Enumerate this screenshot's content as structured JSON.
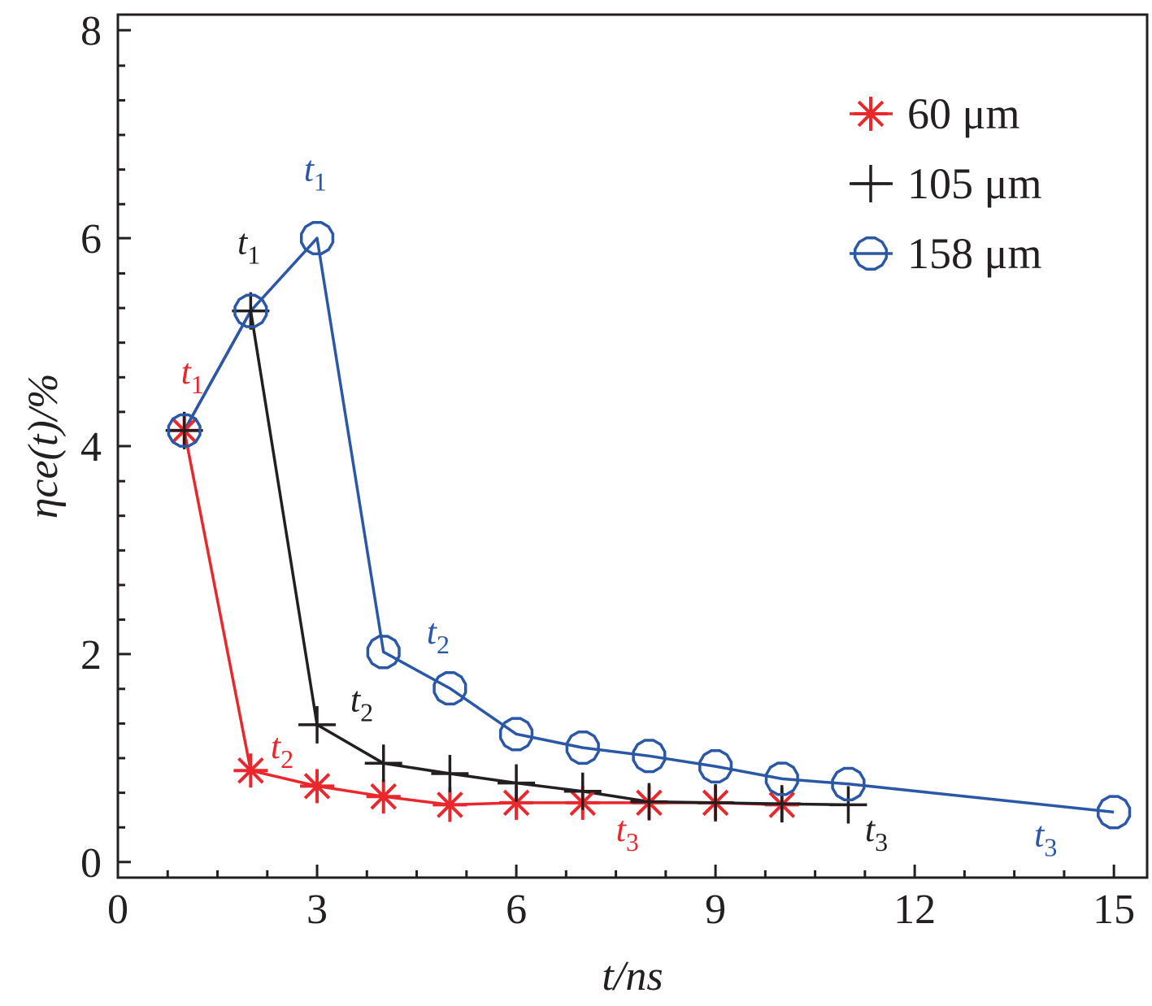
{
  "chart_data": {
    "type": "line",
    "xlabel": "t/ns",
    "ylabel": "ηce(t)/%",
    "xlim": [
      0,
      15.5
    ],
    "ylim": [
      -0.15,
      8.15
    ],
    "xticks": [
      0,
      3,
      6,
      9,
      12,
      15
    ],
    "yticks": [
      0,
      2,
      4,
      6,
      8
    ],
    "x_minor_step": 0.75,
    "y_minor_step": 0.333,
    "grid": false,
    "legend_position": "top-right",
    "series": [
      {
        "name": "60 μm",
        "color": "#e8282c",
        "marker": "asterisk",
        "x": [
          1,
          2,
          3,
          4,
          5,
          6,
          7,
          8,
          9,
          10
        ],
        "y": [
          4.15,
          0.88,
          0.73,
          0.63,
          0.55,
          0.57,
          0.57,
          0.57,
          0.57,
          0.55
        ]
      },
      {
        "name": "105 μm",
        "color": "#231f20",
        "marker": "plus",
        "x": [
          1,
          2,
          3,
          4,
          5,
          6,
          7,
          8,
          9,
          10,
          11
        ],
        "y": [
          4.15,
          5.3,
          1.32,
          0.95,
          0.85,
          0.76,
          0.68,
          0.58,
          0.57,
          0.56,
          0.55
        ]
      },
      {
        "name": "158 μm",
        "color": "#2b58a6",
        "marker": "circle",
        "x": [
          1,
          2,
          3,
          4,
          5,
          6,
          7,
          8,
          9,
          10,
          11,
          15
        ],
        "y": [
          4.15,
          5.3,
          6.0,
          2.02,
          1.67,
          1.23,
          1.1,
          1.02,
          0.92,
          0.8,
          0.75,
          0.48
        ]
      }
    ],
    "annotations": [
      {
        "text": "t",
        "sub": "1",
        "color": "#e8282c",
        "x": 0.95,
        "y": 4.6
      },
      {
        "text": "t",
        "sub": "2",
        "color": "#e8282c",
        "x": 2.3,
        "y": 1.0
      },
      {
        "text": "t",
        "sub": "3",
        "color": "#e8282c",
        "x": 7.5,
        "y": 0.2
      },
      {
        "text": "t",
        "sub": "1",
        "color": "#231f20",
        "x": 1.8,
        "y": 5.85
      },
      {
        "text": "t",
        "sub": "2",
        "color": "#231f20",
        "x": 3.5,
        "y": 1.45
      },
      {
        "text": "t",
        "sub": "3",
        "color": "#231f20",
        "x": 11.25,
        "y": 0.2
      },
      {
        "text": "t",
        "sub": "1",
        "color": "#2b58a6",
        "x": 2.8,
        "y": 6.55
      },
      {
        "text": "t",
        "sub": "2",
        "color": "#2b58a6",
        "x": 4.65,
        "y": 2.1
      },
      {
        "text": "t",
        "sub": "3",
        "color": "#2b58a6",
        "x": 13.8,
        "y": 0.15
      }
    ]
  }
}
